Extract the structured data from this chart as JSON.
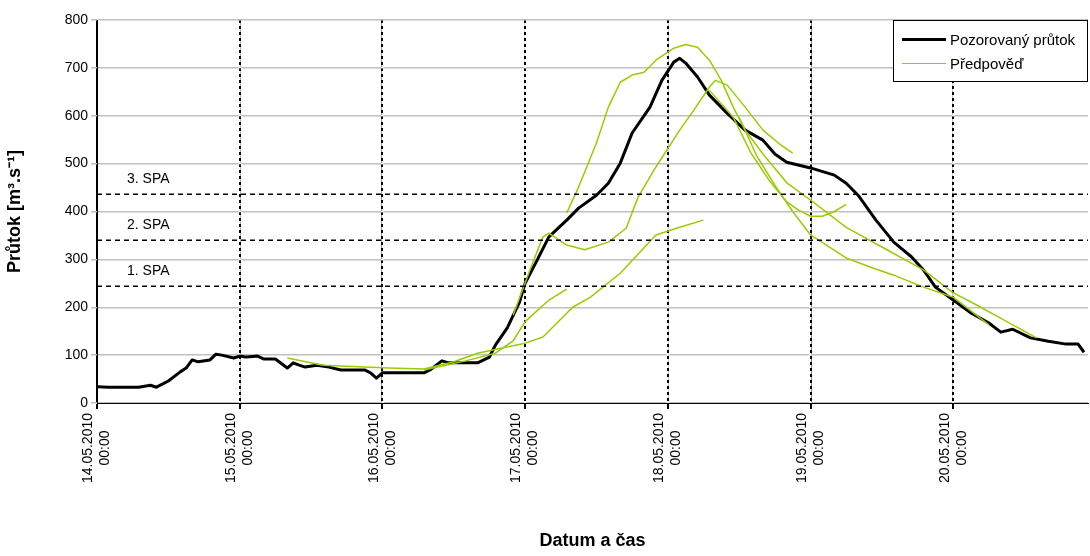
{
  "chart_data": {
    "type": "line",
    "xlabel": "Datum a čas",
    "ylabel": "Průtok [m³.s⁻¹]",
    "xlim": [
      "2010-05-14T00:00",
      "2010-05-20T22:40"
    ],
    "xticks": [
      {
        "value": "2010-05-14T00:00",
        "label": "14.05.2010 00:00"
      },
      {
        "value": "2010-05-15T00:00",
        "label": "15.05.2010 00:00"
      },
      {
        "value": "2010-05-16T00:00",
        "label": "16.05.2010 00:00"
      },
      {
        "value": "2010-05-17T00:00",
        "label": "17.05.2010 00:00"
      },
      {
        "value": "2010-05-18T00:00",
        "label": "18.05.2010 00:00"
      },
      {
        "value": "2010-05-19T00:00",
        "label": "19.05.2010 00:00"
      },
      {
        "value": "2010-05-20T00:00",
        "label": "20.05.2010 00:00"
      }
    ],
    "ylim": [
      0,
      800
    ],
    "yticks": [
      0,
      100,
      200,
      300,
      400,
      500,
      600,
      700,
      800
    ],
    "grid": true,
    "legend": "top right",
    "marker": "none",
    "ref_lines": [
      {
        "axis": "y",
        "value": 436,
        "label": "3. SPA",
        "color": "#000000",
        "line_style": "dashed"
      },
      {
        "axis": "y",
        "value": 340,
        "label": "2. SPA",
        "color": "#000000",
        "line_style": "dashed"
      },
      {
        "axis": "y",
        "value": 244,
        "label": "1. SPA",
        "color": "#000000",
        "line_style": "dashed"
      }
    ],
    "series": [
      {
        "name": "Pozorovaný průtok",
        "color": "#000000",
        "x": [
          "2010-05-14T00:00",
          "2010-05-14T02:00",
          "2010-05-14T07:00",
          "2010-05-14T09:00",
          "2010-05-14T10:00",
          "2010-05-14T12:00",
          "2010-05-14T14:00",
          "2010-05-14T15:00",
          "2010-05-14T16:00",
          "2010-05-14T17:00",
          "2010-05-14T19:00",
          "2010-05-14T20:00",
          "2010-05-14T21:00",
          "2010-05-14T23:00",
          "2010-05-15T00:00",
          "2010-05-15T01:00",
          "2010-05-15T03:00",
          "2010-05-15T04:00",
          "2010-05-15T06:00",
          "2010-05-15T08:00",
          "2010-05-15T09:00",
          "2010-05-15T10:00",
          "2010-05-15T11:00",
          "2010-05-15T13:00",
          "2010-05-15T15:00",
          "2010-05-15T17:00",
          "2010-05-15T21:00",
          "2010-05-15T22:00",
          "2010-05-15T23:00",
          "2010-05-16T00:00",
          "2010-05-16T07:00",
          "2010-05-16T08:00",
          "2010-05-16T10:00",
          "2010-05-16T11:00",
          "2010-05-16T16:00",
          "2010-05-16T18:00",
          "2010-05-16T19:00",
          "2010-05-16T21:00",
          "2010-05-16T23:00",
          "2010-05-17T00:00",
          "2010-05-17T02:00",
          "2010-05-17T04:00",
          "2010-05-17T07:00",
          "2010-05-17T09:00",
          "2010-05-17T12:00",
          "2010-05-17T14:00",
          "2010-05-17T16:00",
          "2010-05-17T18:00",
          "2010-05-17T21:00",
          "2010-05-17T23:00",
          "2010-05-18T01:00",
          "2010-05-18T02:00",
          "2010-05-18T03:00",
          "2010-05-18T05:00",
          "2010-05-18T07:00",
          "2010-05-18T10:00",
          "2010-05-18T13:00",
          "2010-05-18T16:00",
          "2010-05-18T18:00",
          "2010-05-18T20:00",
          "2010-05-19T00:00",
          "2010-05-19T04:00",
          "2010-05-19T06:00",
          "2010-05-19T08:00",
          "2010-05-19T11:00",
          "2010-05-19T14:00",
          "2010-05-19T17:00",
          "2010-05-19T19:00",
          "2010-05-19T21:00",
          "2010-05-20T00:00",
          "2010-05-20T03:00",
          "2010-05-20T06:00",
          "2010-05-20T08:00",
          "2010-05-20T10:00",
          "2010-05-20T13:00",
          "2010-05-20T16:00",
          "2010-05-20T19:00",
          "2010-05-20T21:00",
          "2010-05-20T22:00"
        ],
        "values": [
          34,
          33,
          33,
          37,
          33,
          46,
          65,
          73,
          90,
          86,
          90,
          102,
          100,
          94,
          98,
          96,
          98,
          92,
          92,
          73,
          84,
          79,
          75,
          79,
          75,
          69,
          69,
          63,
          52,
          63,
          63,
          69,
          88,
          84,
          84,
          96,
          121,
          157,
          209,
          250,
          298,
          347,
          382,
          407,
          434,
          459,
          501,
          564,
          618,
          674,
          712,
          720,
          710,
          681,
          643,
          605,
          570,
          549,
          520,
          503,
          491,
          476,
          459,
          434,
          382,
          336,
          305,
          278,
          242,
          215,
          188,
          167,
          148,
          154,
          136,
          129,
          123,
          123,
          106
        ]
      },
      {
        "name": "Předpověď",
        "color": "#99cc00",
        "x": [
          "2010-05-15T08:00",
          "2010-05-15T14:00",
          "2010-05-16T01:00",
          "2010-05-16T07:00",
          "2010-05-16T12:00",
          "2010-05-16T16:00",
          "2010-05-17T00:00",
          "2010-05-17T03:00",
          "2010-05-17T08:00",
          "2010-05-17T11:00",
          "2010-05-17T16:00",
          "2010-05-17T22:00",
          "2010-05-18T02:00",
          "2010-05-18T06:00"
        ],
        "values": [
          94,
          79,
          73,
          71,
          86,
          104,
          125,
          138,
          200,
          221,
          271,
          351,
          367,
          382
        ]
      },
      {
        "color": "#99cc00",
        "x": [
          "2010-05-16T07:00",
          "2010-05-16T14:00",
          "2010-05-16T19:00",
          "2010-05-16T22:00",
          "2010-05-17T00:00",
          "2010-05-17T04:00",
          "2010-05-17T07:00"
        ],
        "values": [
          69,
          88,
          104,
          130,
          170,
          215,
          238
        ]
      },
      {
        "color": "#99cc00",
        "x": [
          "2010-05-16T22:00",
          "2010-05-17T01:00",
          "2010-05-17T03:00",
          "2010-05-17T04:00",
          "2010-05-17T07:00",
          "2010-05-17T10:00",
          "2010-05-17T14:00",
          "2010-05-17T17:00",
          "2010-05-17T19:00",
          "2010-05-17T22:00",
          "2010-05-18T02:00",
          "2010-05-18T04:00",
          "2010-05-18T07:00",
          "2010-05-18T08:00",
          "2010-05-18T10:00",
          "2010-05-18T13:00",
          "2010-05-18T16:00",
          "2010-05-18T19:00",
          "2010-05-18T21:00"
        ],
        "values": [
          184,
          284,
          347,
          355,
          330,
          320,
          336,
          365,
          430,
          493,
          570,
          605,
          660,
          674,
          664,
          618,
          570,
          539,
          522
        ]
      },
      {
        "color": "#99cc00",
        "x": [
          "2010-05-17T07:00",
          "2010-05-17T09:00",
          "2010-05-17T12:00",
          "2010-05-17T14:00",
          "2010-05-17T16:00",
          "2010-05-17T18:00",
          "2010-05-17T20:00",
          "2010-05-17T22:00",
          "2010-05-18T01:00",
          "2010-05-18T03:00",
          "2010-05-18T05:00",
          "2010-05-18T07:00",
          "2010-05-18T09:00",
          "2010-05-18T11:00",
          "2010-05-18T13:00",
          "2010-05-18T16:00",
          "2010-05-18T20:00",
          "2010-05-19T00:00",
          "2010-05-19T06:00",
          "2010-05-19T13:00",
          "2010-05-19T19:00",
          "2010-05-20T00:00",
          "2010-05-20T03:00",
          "2010-05-20T14:00"
        ],
        "values": [
          397,
          451,
          543,
          618,
          670,
          685,
          691,
          716,
          741,
          749,
          743,
          716,
          674,
          618,
          570,
          520,
          460,
          424,
          367,
          319,
          278,
          230,
          211,
          136
        ]
      },
      {
        "color": "#99cc00",
        "x": [
          "2010-05-18T07:00",
          "2010-05-18T11:00",
          "2010-05-18T14:00",
          "2010-05-18T17:00",
          "2010-05-18T20:00",
          "2010-05-18T22:00",
          "2010-05-19T00:00",
          "2010-05-19T02:00",
          "2010-05-19T04:00",
          "2010-05-19T06:00"
        ],
        "values": [
          653,
          597,
          522,
          466,
          420,
          403,
          390,
          390,
          400,
          415
        ]
      },
      {
        "color": "#99cc00",
        "x": [
          "2010-05-18T12:00",
          "2010-05-18T15:00",
          "2010-05-18T18:00",
          "2010-05-18T21:00",
          "2010-05-19T00:00",
          "2010-05-19T06:00",
          "2010-05-19T10:00",
          "2010-05-19T14:00",
          "2010-05-19T19:00",
          "2010-05-20T00:00",
          "2010-05-20T06:00"
        ],
        "values": [
          597,
          515,
          455,
          400,
          351,
          303,
          284,
          267,
          242,
          221,
          163
        ]
      }
    ]
  }
}
